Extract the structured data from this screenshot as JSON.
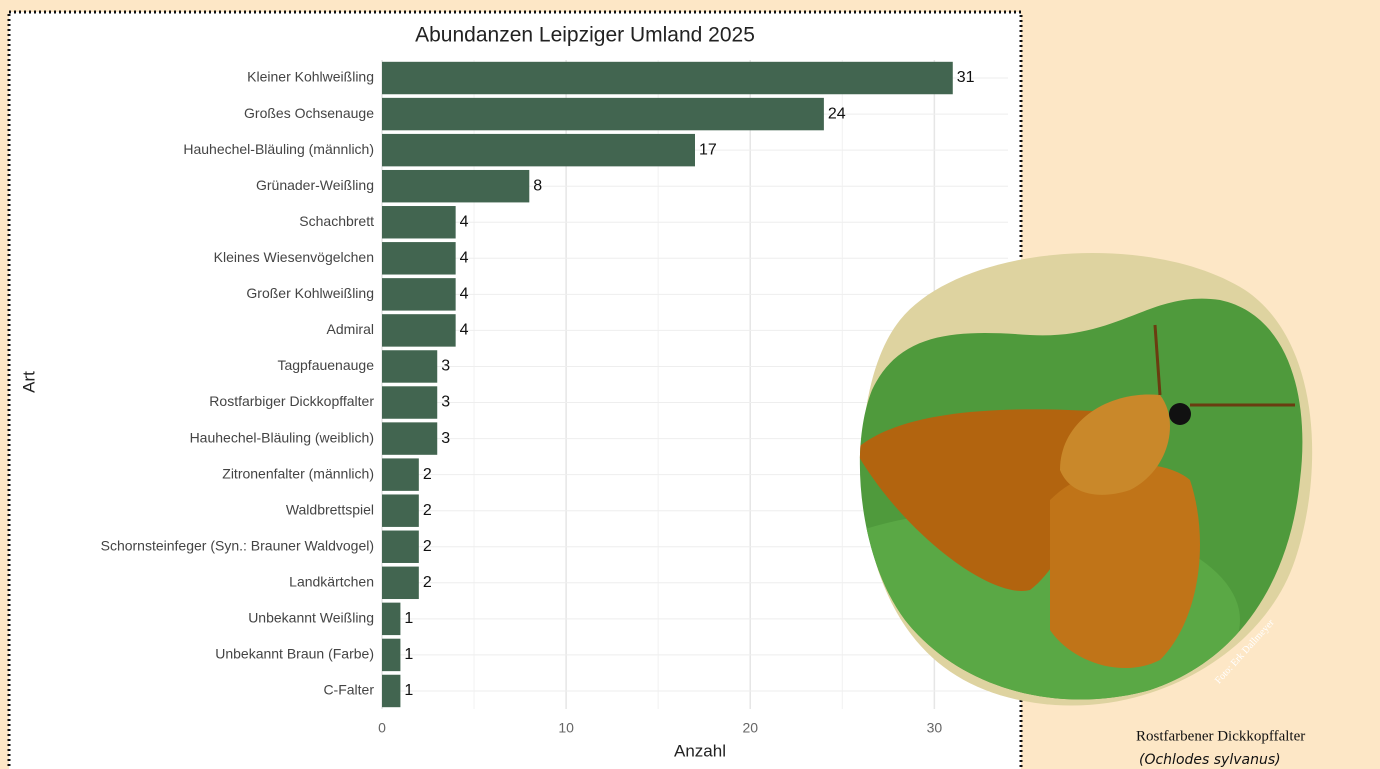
{
  "chart_data": {
    "type": "bar",
    "orientation": "horizontal",
    "title": "Abundanzen Leipziger Umland 2025",
    "x_label": "Anzahl",
    "y_label": "Art",
    "categories": [
      "Kleiner Kohlweißling",
      "Großes Ochsenauge",
      "Hauhechel-Bläuling (männlich)",
      "Grünader-Weißling",
      "Schachbrett",
      "Kleines Wiesenvögelchen",
      "Großer Kohlweißling",
      "Admiral",
      "Tagpfauenauge",
      "Rostfarbiger Dickkopffalter",
      "Hauhechel-Bläuling (weiblich)",
      "Zitronenfalter (männlich)",
      "Waldbrettspiel",
      "Schornsteinfeger (Syn.: Brauner Waldvogel)",
      "Landkärtchen",
      "Unbekannt Weißling",
      "Unbekannt Braun (Farbe)",
      "C-Falter"
    ],
    "values": [
      31,
      24,
      17,
      8,
      4,
      4,
      4,
      4,
      3,
      3,
      3,
      2,
      2,
      2,
      2,
      1,
      1,
      1
    ],
    "color": "#426550",
    "xlim": [
      0,
      34
    ],
    "xticks": [
      0,
      10,
      20,
      30
    ],
    "minor_grid": [
      5,
      15,
      25
    ],
    "grid": true
  },
  "photo": {
    "caption": "Rostfarbener Dickkopffalter",
    "latin": "(Ochlodes sylvanus)",
    "credit": "Foto: Erk Dallmeyer"
  }
}
